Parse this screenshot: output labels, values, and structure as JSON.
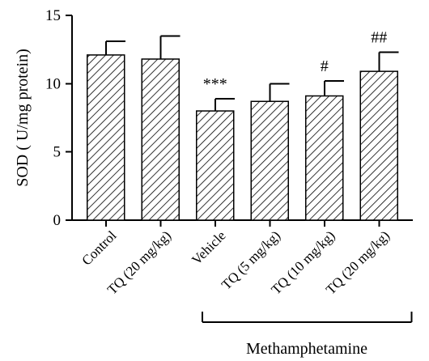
{
  "chart_data": {
    "type": "bar",
    "categories": [
      "Control",
      "TQ (20 mg/kg)",
      "Vehicle",
      "TQ (5 mg/kg)",
      "TQ (10 mg/kg)",
      "TQ (20 mg/kg)"
    ],
    "values": [
      12.1,
      11.8,
      8.0,
      8.7,
      9.1,
      10.9
    ],
    "errors": [
      1.0,
      1.7,
      0.9,
      1.3,
      1.1,
      1.4
    ],
    "annotations": [
      "",
      "",
      "***",
      "",
      "#",
      "##"
    ],
    "ylabel": "SOD ( U/mg protein)",
    "xlabel": "",
    "ylim": [
      0,
      15
    ],
    "yticks": [
      0,
      5,
      10,
      15
    ],
    "group_bracket": {
      "label": "Methamphetamine",
      "from_category": 2,
      "to_category": 5
    },
    "grid": false,
    "colors": {
      "bar_fill": "#ffffff",
      "hatch": "#000000",
      "axis": "#000000"
    }
  }
}
